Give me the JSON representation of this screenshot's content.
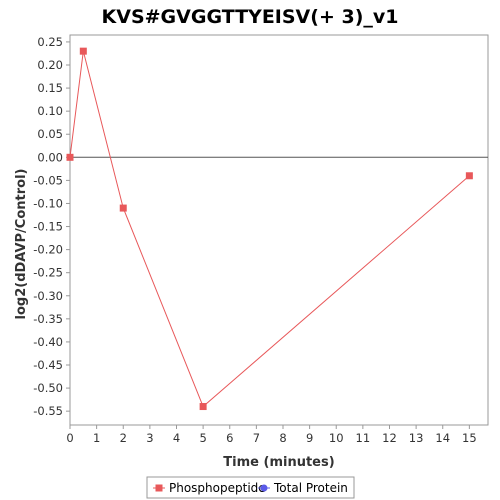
{
  "chart_data": {
    "type": "line",
    "title": "KVS#GVGGTTYEISV(+ 3)_v1",
    "xlabel": "Time (minutes)",
    "ylabel": "log2(dDAVP/Control)",
    "xlim": [
      0,
      15.7
    ],
    "ylim": [
      -0.58,
      0.265
    ],
    "x_ticks": [
      0,
      1,
      2,
      3,
      4,
      5,
      6,
      7,
      8,
      9,
      10,
      11,
      12,
      13,
      14,
      15
    ],
    "x_tick_labels": [
      "0",
      "1",
      "2",
      "3",
      "4",
      "5",
      "6",
      "7",
      "8",
      "9",
      "10",
      "11",
      "12",
      "13",
      "14",
      "15"
    ],
    "y_ticks": [
      0.25,
      0.2,
      0.15,
      0.1,
      0.05,
      0.0,
      -0.05,
      -0.1,
      -0.15,
      -0.2,
      -0.25,
      -0.3,
      -0.35,
      -0.4,
      -0.45,
      -0.5,
      -0.55
    ],
    "y_tick_labels": [
      "0.25",
      "0.20",
      "0.15",
      "0.10",
      "0.05",
      "0.00",
      "-0.05",
      "-0.10",
      "-0.15",
      "-0.20",
      "-0.25",
      "-0.30",
      "-0.35",
      "-0.40",
      "-0.45",
      "-0.50",
      "-0.55"
    ],
    "zero_line": true,
    "grid": false,
    "legend_position": "bottom-center",
    "series": [
      {
        "name": "Phosphopeptide",
        "color": "#e8585a",
        "marker": "square",
        "x": [
          0,
          0.5,
          2,
          5,
          15
        ],
        "y": [
          0.0,
          0.23,
          -0.11,
          -0.54,
          -0.04
        ]
      },
      {
        "name": "Total Protein",
        "color": "#5a5ae8",
        "marker": "circle",
        "x": [],
        "y": []
      }
    ]
  }
}
